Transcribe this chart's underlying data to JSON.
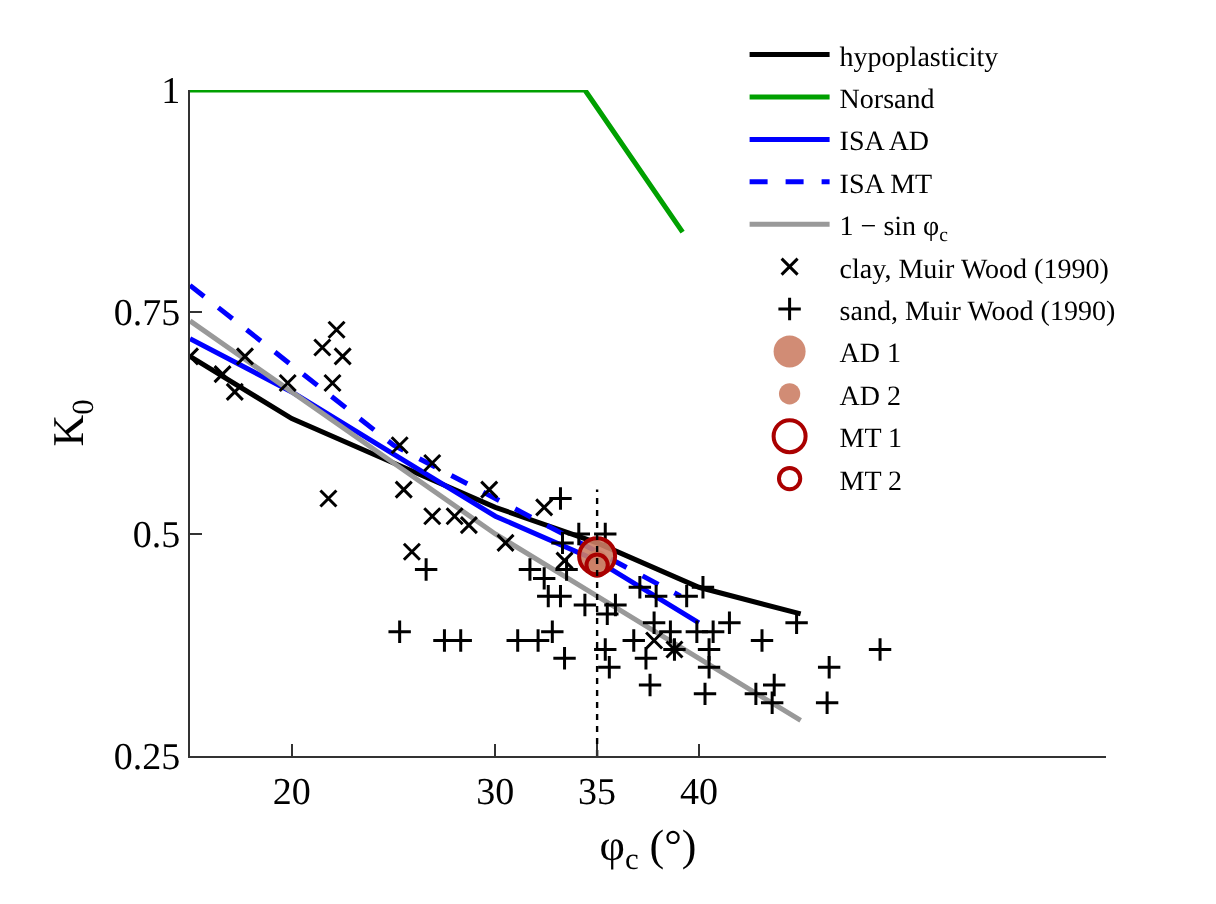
{
  "chart_data": {
    "type": "line",
    "xlabel": "φ$_{c}$ (°)",
    "ylabel": "K$_{0}$",
    "xlim": [
      15,
      60
    ],
    "xticks": [
      20,
      30,
      35,
      40
    ],
    "ylim": [
      0.25,
      1
    ],
    "yticks": [
      0.25,
      0.5,
      0.75,
      1
    ],
    "grid": false,
    "legend": "top right",
    "series": [
      {
        "name": "hypoplasticity",
        "color": "#000000",
        "marker": "none",
        "line_style": "solid",
        "x": [
          15,
          20,
          25,
          30,
          35,
          40,
          45
        ],
        "values": [
          0.7,
          0.63,
          0.58,
          0.53,
          0.49,
          0.44,
          0.41
        ]
      },
      {
        "name": "Norsand",
        "color": "#00a000",
        "marker": "none",
        "line_style": "solid",
        "x": [
          15,
          34.4,
          35,
          39.2
        ],
        "values": [
          1,
          1,
          0.98,
          0.84
        ]
      },
      {
        "name": "ISA AD",
        "color": "#0000ff",
        "marker": "none",
        "line_style": "solid",
        "x": [
          15,
          20,
          25,
          30,
          35,
          40
        ],
        "values": [
          0.72,
          0.66,
          0.59,
          0.52,
          0.47,
          0.4
        ]
      },
      {
        "name": "ISA MT",
        "color": "#0000ff",
        "marker": "none",
        "line_style": "dashed",
        "x": [
          15,
          20,
          25,
          30,
          35,
          39.1
        ],
        "values": [
          0.78,
          0.69,
          0.6,
          0.54,
          0.48,
          0.43
        ]
      },
      {
        "name": "1 − sin φ$_{c}$",
        "color": "#999999",
        "marker": "none",
        "line_style": "solid",
        "x": [
          15,
          20,
          25,
          30,
          35,
          40,
          45
        ],
        "values": [
          0.74,
          0.66,
          0.58,
          0.5,
          0.43,
          0.36,
          0.29
        ]
      },
      {
        "name": "clay, Muir Wood (1990)",
        "type": "scatter",
        "color": "#000000",
        "marker": "x",
        "x": [
          15.0,
          16.6,
          17.7,
          17.2,
          19.8,
          21.5,
          22.2,
          22.5,
          22.0,
          21.8,
          25.3,
          25.5,
          26.9,
          26.9,
          28.0,
          28.7,
          29.7,
          30.5,
          25.9,
          32.4,
          33.4,
          37.8,
          38.8
        ],
        "values": [
          0.7,
          0.68,
          0.7,
          0.66,
          0.67,
          0.71,
          0.73,
          0.7,
          0.67,
          0.54,
          0.6,
          0.55,
          0.58,
          0.52,
          0.52,
          0.51,
          0.55,
          0.49,
          0.48,
          0.53,
          0.47,
          0.38,
          0.37
        ]
      },
      {
        "name": "sand, Muir Wood (1990)",
        "type": "scatter",
        "color": "#000000",
        "marker": "cross",
        "x": [
          25.3,
          27.5,
          28.3,
          31.1,
          32.1,
          32.8,
          26.6,
          31.7,
          32.4,
          32.6,
          33.2,
          33.4,
          34.1,
          35.4,
          33.3,
          33.5,
          33.2,
          34.4,
          35.5,
          35.4,
          35.6,
          35.9,
          36.8,
          37.4,
          37.6,
          37.1,
          37.9,
          39.4,
          40.2,
          39.9,
          40.7,
          41.5,
          44.8,
          43.1,
          40.5,
          40.5,
          40.3,
          42.8,
          43.7,
          43.6,
          46.3,
          46.4,
          48.9,
          37.8,
          38.6,
          38.8
        ],
        "values": [
          0.39,
          0.38,
          0.38,
          0.38,
          0.38,
          0.39,
          0.46,
          0.46,
          0.45,
          0.43,
          0.54,
          0.36,
          0.5,
          0.5,
          0.49,
          0.46,
          0.43,
          0.42,
          0.41,
          0.37,
          0.35,
          0.42,
          0.38,
          0.36,
          0.33,
          0.44,
          0.43,
          0.43,
          0.44,
          0.39,
          0.39,
          0.4,
          0.4,
          0.38,
          0.37,
          0.35,
          0.32,
          0.32,
          0.33,
          0.31,
          0.31,
          0.35,
          0.37,
          0.4,
          0.39,
          0.37
        ]
      },
      {
        "name": "AD 1",
        "type": "bubble",
        "color": "#cc8066",
        "marker": "circle",
        "x": [
          35
        ],
        "values": [
          0.475
        ],
        "sizes": [
          1
        ]
      },
      {
        "name": "AD 2",
        "type": "bubble",
        "color": "#cc8066",
        "marker": "circle",
        "x": [
          35
        ],
        "values": [
          0.47
        ],
        "sizes": [
          0.35
        ]
      },
      {
        "name": "MT 1",
        "type": "bubble",
        "color": "#aa0000",
        "marker": "circle-open",
        "x": [
          35
        ],
        "values": [
          0.475
        ],
        "sizes": [
          1
        ]
      },
      {
        "name": "MT 2",
        "type": "bubble",
        "color": "#aa0000",
        "marker": "circle-open",
        "x": [
          35
        ],
        "values": [
          0.465
        ],
        "sizes": [
          0.35
        ]
      },
      {
        "color": "#000000",
        "marker": "none",
        "line_style": "dotted",
        "x": [
          35,
          35
        ],
        "values": [
          0.25,
          0.55
        ]
      }
    ]
  }
}
